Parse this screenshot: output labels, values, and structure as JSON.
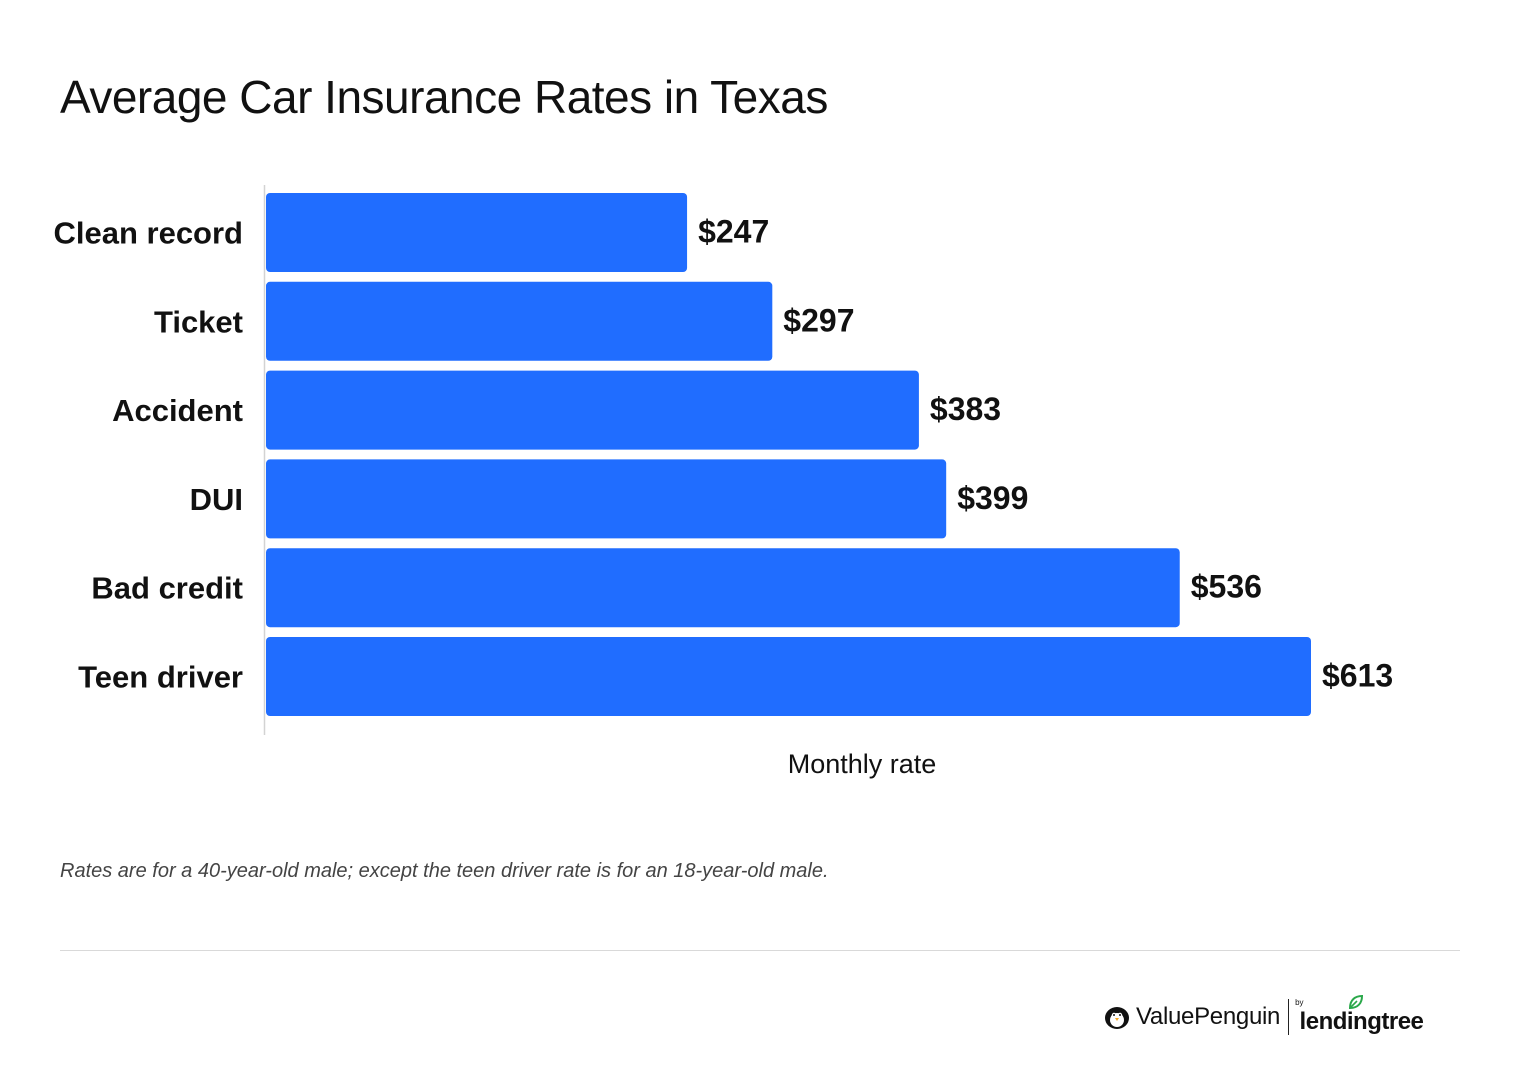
{
  "title": "Average Car Insurance Rates in Texas",
  "chart_data": {
    "type": "bar",
    "orientation": "horizontal",
    "categories": [
      "Clean record",
      "Ticket",
      "Accident",
      "DUI",
      "Bad credit",
      "Teen driver"
    ],
    "values": [
      247,
      297,
      383,
      399,
      536,
      613
    ],
    "data_labels": [
      "$247",
      "$297",
      "$383",
      "$399",
      "$536",
      "$613"
    ],
    "xlabel": "Monthly rate",
    "ylabel": "",
    "xlim": [
      0,
      650
    ],
    "grid": false,
    "legend": "none",
    "bar_color": "#206dff"
  },
  "footnote": "Rates are for a 40-year-old male; except the teen driver rate is for an 18-year-old male.",
  "branding": {
    "valuepenguin": "ValuePenguin",
    "by": "by",
    "lendingtree": "lendingtree",
    "leaf_color": "#2aa84a"
  }
}
